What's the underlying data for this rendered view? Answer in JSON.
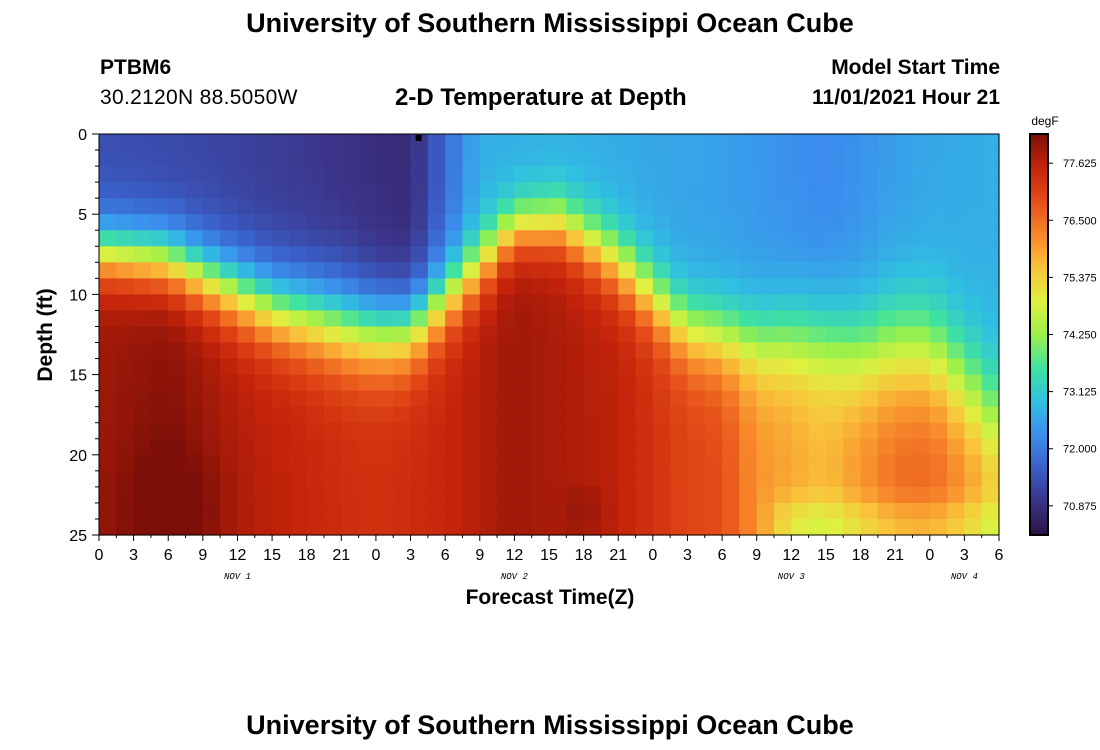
{
  "header": {
    "title": "University of Southern Mississippi Ocean Cube",
    "station_id": "PTBM6",
    "coordinates": "30.2120N  88.5050W",
    "chart_title": "2-D Temperature at Depth",
    "model_label": "Model Start Time",
    "model_start": "11/01/2021 Hour 21"
  },
  "footer": {
    "title": "University of Southern Mississippi Ocean Cube"
  },
  "chart_data": {
    "type": "heatmap",
    "title": "2-D Temperature at Depth",
    "xlabel": "Forecast Time(Z)",
    "ylabel": "Depth (ft)",
    "x_range_hours": [
      0,
      78
    ],
    "x_step_hours": 1.5,
    "x_tick_labels": [
      "0",
      "3",
      "6",
      "9",
      "12",
      "15",
      "18",
      "21",
      "0",
      "3",
      "6",
      "9",
      "12",
      "15",
      "18",
      "21",
      "0",
      "3",
      "6",
      "9",
      "12",
      "15",
      "18",
      "21",
      "0",
      "3",
      "6"
    ],
    "date_labels": [
      {
        "label": "NOV 1",
        "hour": 12
      },
      {
        "label": "NOV 2",
        "hour": 36
      },
      {
        "label": "NOV 3",
        "hour": 60
      },
      {
        "label": "NOV 4",
        "hour": 75
      }
    ],
    "y_range_ft": [
      0,
      25
    ],
    "y_step_ft": 1,
    "y_ticks": [
      0,
      5,
      10,
      15,
      20,
      25
    ],
    "colorbar": {
      "unit": "degF",
      "min": 70.3,
      "max": 78.2,
      "ticks": [
        "77.625",
        "76.500",
        "75.375",
        "74.250",
        "73.125",
        "72.000",
        "70.875"
      ],
      "colors": [
        "#2a1346",
        "#3b3286",
        "#3a5fc8",
        "#3b8fee",
        "#30c0e0",
        "#3fe2a0",
        "#9cf04a",
        "#dff040",
        "#f9c33a",
        "#f7862a",
        "#e54c18",
        "#c5240a",
        "#7d0f08"
      ]
    },
    "profile_model": {
      "surface_temp": [
        [
          0,
          71.4
        ],
        [
          12,
          71.2
        ],
        [
          27,
          70.8
        ],
        [
          33,
          72.7
        ],
        [
          42,
          72.7
        ],
        [
          54,
          72.5
        ],
        [
          63,
          72.2
        ],
        [
          72,
          72.6
        ],
        [
          78,
          72.7
        ]
      ],
      "thermocline_depth_ft": [
        [
          0,
          7.3
        ],
        [
          6,
          7.8
        ],
        [
          9,
          8.8
        ],
        [
          15,
          10.8
        ],
        [
          24,
          12.3
        ],
        [
          27,
          12.2
        ],
        [
          33,
          8.2
        ],
        [
          36,
          5.8
        ],
        [
          40,
          5.6
        ],
        [
          45,
          8.0
        ],
        [
          51,
          12.2
        ],
        [
          57,
          13.0
        ],
        [
          60,
          12.6
        ],
        [
          63,
          12.8
        ],
        [
          66,
          13.5
        ],
        [
          69,
          13.2
        ],
        [
          72,
          13.5
        ],
        [
          75,
          15.5
        ],
        [
          78,
          17.8
        ]
      ],
      "thermocline_width_ft": [
        [
          0,
          2.3
        ],
        [
          9,
          2.6
        ],
        [
          21,
          3.3
        ],
        [
          27,
          3.0
        ],
        [
          36,
          2.2
        ],
        [
          45,
          2.6
        ],
        [
          51,
          2.8
        ],
        [
          57,
          3.2
        ],
        [
          63,
          3.8
        ],
        [
          69,
          4.4
        ],
        [
          78,
          4.3
        ]
      ],
      "deep_temp": [
        [
          0,
          77.9
        ],
        [
          6,
          78.1
        ],
        [
          12,
          77.7
        ],
        [
          24,
          77.3
        ],
        [
          30,
          77.5
        ],
        [
          36,
          77.9
        ],
        [
          45,
          77.6
        ],
        [
          51,
          77.0
        ],
        [
          54,
          76.9
        ],
        [
          57,
          76.1
        ],
        [
          63,
          75.7
        ],
        [
          69,
          76.6
        ],
        [
          72,
          76.7
        ],
        [
          75,
          76.3
        ],
        [
          78,
          75.7
        ]
      ],
      "bottom_warm_spots": [
        {
          "hour": 6.5,
          "depth_ft": 23.5,
          "delta": 0.4,
          "spread_hours": 4.5,
          "spread_ft": 4
        },
        {
          "hour": 42,
          "depth_ft": 23.5,
          "delta": 0.25,
          "spread_hours": 1.8,
          "spread_ft": 1.5
        }
      ],
      "bottom_cool_bands": [
        {
          "from_hour": 57,
          "to_hour": 78,
          "depth_ft": 24.5,
          "delta": -0.9,
          "spread_ft": 1.8
        }
      ]
    }
  }
}
